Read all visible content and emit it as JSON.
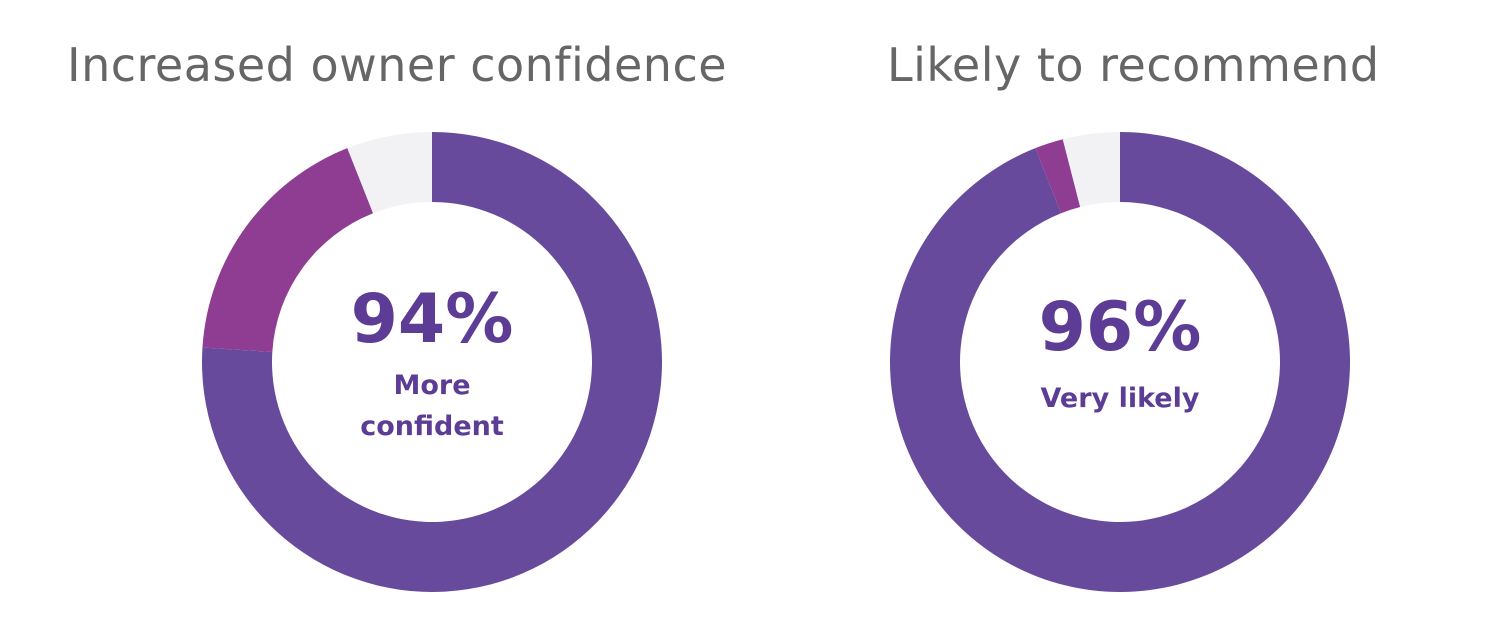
{
  "colors": {
    "title": "#666666",
    "primary": "#674a9c",
    "secondary": "#8e3d93",
    "remainder": "#f2f2f5",
    "center_text": "#5c3c95"
  },
  "chart_data": [
    {
      "type": "pie",
      "style": "donut",
      "title": "Increased owner confidence",
      "center_value": "94%",
      "center_label": [
        "More",
        "confident"
      ],
      "slices": [
        {
          "value": 76,
          "color": "#674a9c"
        },
        {
          "value": 18,
          "color": "#8e3d93"
        },
        {
          "value": 6,
          "color": "#f2f2f5"
        }
      ]
    },
    {
      "type": "pie",
      "style": "donut",
      "title": "Likely to recommend",
      "center_value": "96%",
      "center_label": [
        "Very likely"
      ],
      "slices": [
        {
          "value": 94,
          "color": "#674a9c"
        },
        {
          "value": 2,
          "color": "#8e3d93"
        },
        {
          "value": 4,
          "color": "#f2f2f5"
        }
      ]
    }
  ]
}
